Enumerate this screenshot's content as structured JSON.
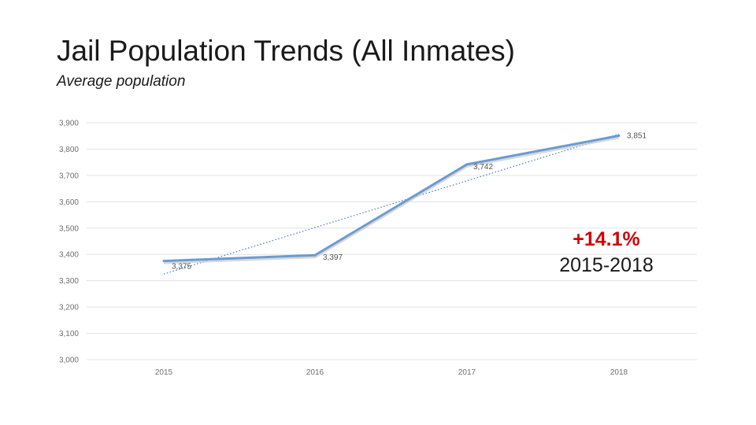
{
  "slide": {
    "title": "Jail Population Trends (All Inmates)",
    "subtitle": "Average population"
  },
  "callout": {
    "change": "+14.1%",
    "period": "2015-2018",
    "change_color": "#d40000"
  },
  "chart_data": {
    "type": "line",
    "title": "",
    "xlabel": "",
    "ylabel": "",
    "categories": [
      "2015",
      "2016",
      "2017",
      "2018"
    ],
    "series": [
      {
        "name": "Average population",
        "values": [
          3375,
          3397,
          3742,
          3851
        ],
        "color": "#6b9bd1"
      }
    ],
    "data_labels": [
      "3,375",
      "3,397",
      "3,742",
      "3,851"
    ],
    "trendline": {
      "type": "linear",
      "style": "dotted",
      "color": "#3b79c4"
    },
    "ylim": [
      3000,
      3900
    ],
    "yticks": [
      3000,
      3100,
      3200,
      3300,
      3400,
      3500,
      3600,
      3700,
      3800,
      3900
    ],
    "ytick_labels": [
      "3,000",
      "3,100",
      "3,200",
      "3,300",
      "3,400",
      "3,500",
      "3,600",
      "3,700",
      "3,800",
      "3,900"
    ],
    "grid": true,
    "legend": "none"
  }
}
